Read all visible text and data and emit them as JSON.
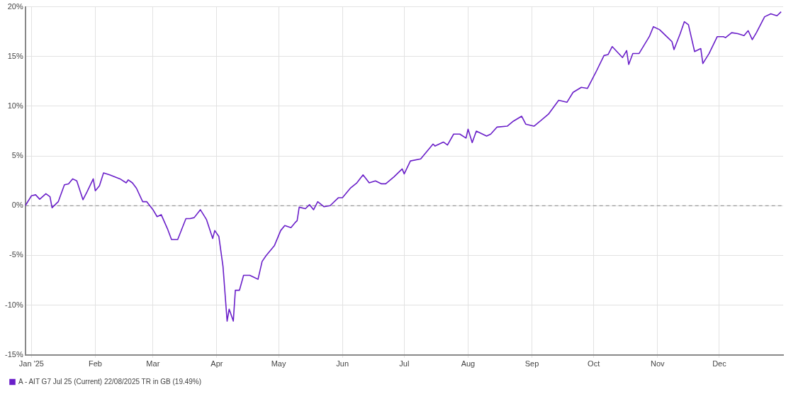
{
  "chart_data": {
    "type": "line",
    "xlim": [
      "2024-12-29",
      "2026-01-01"
    ],
    "xticks": [
      {
        "value": "2025-01-01",
        "label": "Jan '25"
      },
      {
        "value": "2025-02-01",
        "label": "Feb"
      },
      {
        "value": "2025-03-01",
        "label": "Mar"
      },
      {
        "value": "2025-04-01",
        "label": "Apr"
      },
      {
        "value": "2025-05-01",
        "label": "May"
      },
      {
        "value": "2025-06-01",
        "label": "Jun"
      },
      {
        "value": "2025-07-01",
        "label": "Jul"
      },
      {
        "value": "2025-08-01",
        "label": "Aug"
      },
      {
        "value": "2025-09-01",
        "label": "Sep"
      },
      {
        "value": "2025-10-01",
        "label": "Oct"
      },
      {
        "value": "2025-11-01",
        "label": "Nov"
      },
      {
        "value": "2025-12-01",
        "label": "Dec"
      }
    ],
    "ylim": [
      -15,
      20
    ],
    "yticks": [
      {
        "value": -15,
        "label": "-15%"
      },
      {
        "value": -10,
        "label": "-10%"
      },
      {
        "value": -5,
        "label": "-5%"
      },
      {
        "value": 0,
        "label": "0%"
      },
      {
        "value": 5,
        "label": "5%"
      },
      {
        "value": 10,
        "label": "10%"
      },
      {
        "value": 15,
        "label": "15%"
      },
      {
        "value": 20,
        "label": "20%"
      }
    ],
    "grid": true,
    "legend": "bottom left",
    "marker": "none",
    "line_style": "solid",
    "ref_lines": [
      {
        "axis": "y",
        "value": 0,
        "color": "#999999",
        "line_style": "dashed"
      }
    ],
    "x": [
      "2024-12-29",
      "2025-01-01",
      "2025-01-03",
      "2025-01-05",
      "2025-01-08",
      "2025-01-10",
      "2025-01-11",
      "2025-01-14",
      "2025-01-17",
      "2025-01-19",
      "2025-01-21",
      "2025-01-23",
      "2025-01-26",
      "2025-01-28",
      "2025-01-31",
      "2025-02-01",
      "2025-02-03",
      "2025-02-05",
      "2025-02-08",
      "2025-02-13",
      "2025-02-16",
      "2025-02-17",
      "2025-02-19",
      "2025-02-21",
      "2025-02-24",
      "2025-02-26",
      "2025-03-01",
      "2025-03-03",
      "2025-03-05",
      "2025-03-08",
      "2025-03-10",
      "2025-03-13",
      "2025-03-17",
      "2025-03-19",
      "2025-03-21",
      "2025-03-24",
      "2025-03-27",
      "2025-03-30",
      "2025-03-31",
      "2025-04-02",
      "2025-04-04",
      "2025-04-06",
      "2025-04-07",
      "2025-04-09",
      "2025-04-10",
      "2025-04-12",
      "2025-04-14",
      "2025-04-17",
      "2025-04-19",
      "2025-04-21",
      "2025-04-23",
      "2025-04-25",
      "2025-04-29",
      "2025-05-02",
      "2025-05-04",
      "2025-05-07",
      "2025-05-09",
      "2025-05-10",
      "2025-05-11",
      "2025-05-14",
      "2025-05-16",
      "2025-05-18",
      "2025-05-20",
      "2025-05-23",
      "2025-05-26",
      "2025-05-30",
      "2025-06-01",
      "2025-06-05",
      "2025-06-08",
      "2025-06-11",
      "2025-06-14",
      "2025-06-17",
      "2025-06-20",
      "2025-06-22",
      "2025-06-26",
      "2025-06-30",
      "2025-07-01",
      "2025-07-04",
      "2025-07-09",
      "2025-07-15",
      "2025-07-16",
      "2025-07-20",
      "2025-07-22",
      "2025-07-25",
      "2025-07-28",
      "2025-07-31",
      "2025-08-01",
      "2025-08-03",
      "2025-08-05",
      "2025-08-10",
      "2025-08-12",
      "2025-08-15",
      "2025-08-20",
      "2025-08-23",
      "2025-08-27",
      "2025-08-29",
      "2025-09-02",
      "2025-09-05",
      "2025-09-09",
      "2025-09-14",
      "2025-09-18",
      "2025-09-21",
      "2025-09-25",
      "2025-09-28",
      "2025-10-02",
      "2025-10-06",
      "2025-10-08",
      "2025-10-10",
      "2025-10-15",
      "2025-10-17",
      "2025-10-18",
      "2025-10-20",
      "2025-10-23",
      "2025-10-28",
      "2025-10-30",
      "2025-11-02",
      "2025-11-06",
      "2025-11-08",
      "2025-11-09",
      "2025-11-12",
      "2025-11-14",
      "2025-11-16",
      "2025-11-19",
      "2025-11-22",
      "2025-11-23",
      "2025-11-26",
      "2025-11-30",
      "2025-12-03",
      "2025-12-04",
      "2025-12-07",
      "2025-12-10",
      "2025-12-13",
      "2025-12-15",
      "2025-12-17",
      "2025-12-19",
      "2025-12-23",
      "2025-12-26",
      "2025-12-29",
      "2025-12-31"
    ],
    "series": [
      {
        "name": "A - AIT G7 Jul 25 (Current) 22/08/2025 TR in GB (19.49%)",
        "color": "#6a1fc9",
        "values": [
          0,
          1.0,
          1.1,
          0.65,
          1.2,
          0.9,
          -0.2,
          0.4,
          2.1,
          2.2,
          2.7,
          2.5,
          0.6,
          1.4,
          2.7,
          1.5,
          2.0,
          3.3,
          3.1,
          2.7,
          2.3,
          2.6,
          2.3,
          1.75,
          0.4,
          0.4,
          -0.4,
          -1.1,
          -0.9,
          -2.3,
          -3.4,
          -3.4,
          -1.3,
          -1.3,
          -1.2,
          -0.4,
          -1.4,
          -3.3,
          -2.5,
          -3.1,
          -6.1,
          -11.6,
          -10.4,
          -11.6,
          -8.5,
          -8.5,
          -7.0,
          -7.0,
          -7.2,
          -7.4,
          -5.6,
          -5.0,
          -4.0,
          -2.5,
          -2.0,
          -2.2,
          -1.7,
          -1.5,
          -0.15,
          -0.3,
          0.1,
          -0.4,
          0.4,
          -0.1,
          0,
          0.8,
          0.8,
          1.8,
          2.3,
          3.1,
          2.3,
          2.5,
          2.2,
          2.2,
          2.9,
          3.7,
          3.2,
          4.5,
          4.7,
          6.2,
          6.0,
          6.4,
          6.1,
          7.2,
          7.2,
          6.8,
          7.7,
          6.35,
          7.5,
          7.0,
          7.2,
          7.9,
          8.0,
          8.5,
          9.0,
          8.2,
          8.0,
          8.5,
          9.2,
          10.6,
          10.4,
          11.4,
          11.9,
          11.8,
          13.4,
          15.1,
          15.2,
          16.0,
          14.9,
          15.6,
          14.2,
          15.3,
          15.3,
          17.0,
          18.0,
          17.7,
          16.9,
          16.5,
          15.7,
          17.3,
          18.5,
          18.2,
          15.5,
          15.8,
          14.3,
          15.3,
          17.0,
          17.0,
          16.9,
          17.4,
          17.3,
          17.1,
          17.6,
          16.7,
          17.4,
          19.0,
          19.3,
          19.1,
          19.5
        ]
      }
    ]
  }
}
